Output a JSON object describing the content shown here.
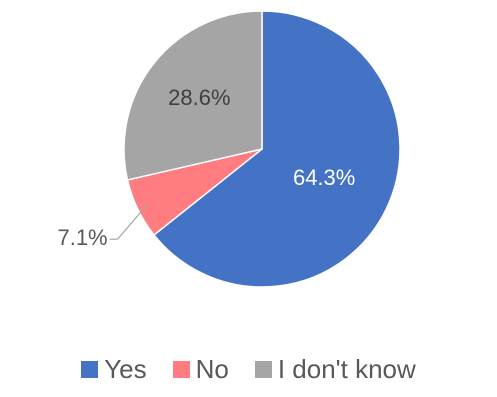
{
  "chart_data": {
    "type": "pie",
    "categories": [
      "Yes",
      "No",
      "I don't know"
    ],
    "values": [
      64.3,
      7.1,
      28.6
    ],
    "data_labels": [
      "64.3%",
      "7.1%",
      "28.6%"
    ],
    "colors": [
      "#4472C4",
      "#FF7C80",
      "#A5A5A5"
    ],
    "label_colors": [
      "#ffffff",
      "#595959",
      "#404040"
    ],
    "start_angle_deg": 0,
    "direction": "clockwise",
    "legend": "bottom",
    "title": ""
  }
}
